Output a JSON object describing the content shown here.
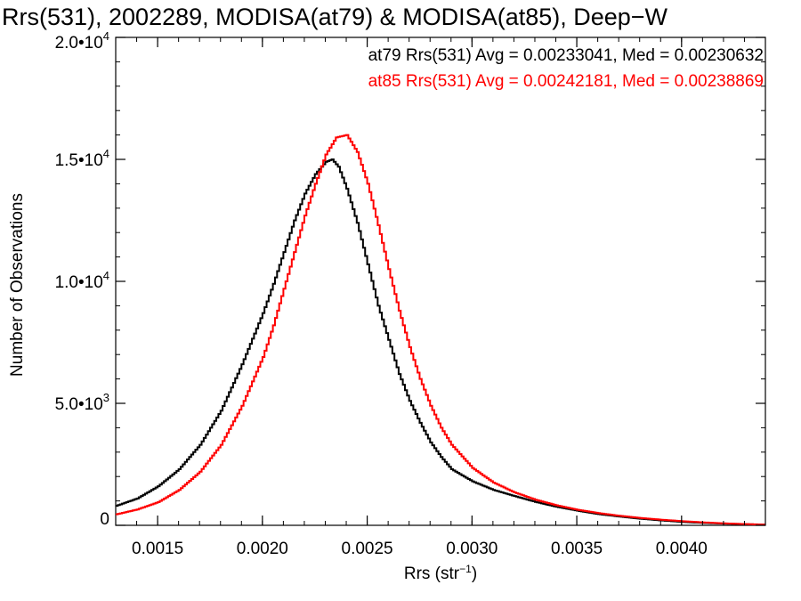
{
  "chart_data": {
    "type": "line",
    "title": "Rrs(531), 2002289, MODISA(at79) & MODISA(at85), Deep−W",
    "xlabel": "Rrs (str",
    "xlabel_sup": "−1",
    "xlabel_close": ")",
    "ylabel": "Number of Observations",
    "xlim": [
      0.0013,
      0.0044
    ],
    "ylim": [
      0,
      20000
    ],
    "xticks": [
      {
        "value": 0.0015,
        "label": "0.0015"
      },
      {
        "value": 0.002,
        "label": "0.0020"
      },
      {
        "value": 0.0025,
        "label": "0.0025"
      },
      {
        "value": 0.003,
        "label": "0.0030"
      },
      {
        "value": 0.0035,
        "label": "0.0035"
      },
      {
        "value": 0.004,
        "label": "0.0040"
      }
    ],
    "yticks": [
      {
        "value": 0,
        "label": "0",
        "exp": ""
      },
      {
        "value": 5000,
        "label": "5.0•10",
        "exp": "3"
      },
      {
        "value": 10000,
        "label": "1.0•10",
        "exp": "4"
      },
      {
        "value": 15000,
        "label": "1.5•10",
        "exp": "4"
      },
      {
        "value": 20000,
        "label": "2.0•10",
        "exp": "4"
      }
    ],
    "x_minor_step": 0.0001,
    "y_minor_step": 1000,
    "grid": false,
    "annotations": [
      "at79 Rrs(531) Avg = 0.00233041, Med = 0.00230632",
      "at85 Rrs(531) Avg = 0.00242181, Med = 0.00238869"
    ],
    "series": [
      {
        "name": "at79",
        "color": "#000000",
        "x": [
          0.0013,
          0.0014,
          0.0015,
          0.0016,
          0.0017,
          0.0018,
          0.0019,
          0.002,
          0.00205,
          0.0021,
          0.00215,
          0.0022,
          0.00225,
          0.0023,
          0.00233,
          0.00236,
          0.0024,
          0.00245,
          0.0025,
          0.00255,
          0.0026,
          0.00265,
          0.0027,
          0.00275,
          0.0028,
          0.00285,
          0.0029,
          0.003,
          0.0031,
          0.0032,
          0.0033,
          0.0034,
          0.0035,
          0.0036,
          0.0037,
          0.0038,
          0.0039,
          0.004,
          0.0041,
          0.0042,
          0.0043,
          0.0044
        ],
        "y": [
          800,
          1100,
          1600,
          2300,
          3300,
          4700,
          6600,
          8700,
          9900,
          11200,
          12500,
          13600,
          14400,
          14900,
          15000,
          14700,
          13800,
          12400,
          10700,
          9000,
          7600,
          6200,
          5100,
          4200,
          3400,
          2800,
          2300,
          1800,
          1450,
          1200,
          960,
          760,
          600,
          460,
          360,
          270,
          200,
          140,
          100,
          70,
          45,
          25
        ]
      },
      {
        "name": "at85",
        "color": "#ff0000",
        "x": [
          0.0013,
          0.0014,
          0.0015,
          0.0016,
          0.0017,
          0.0018,
          0.0019,
          0.002,
          0.00205,
          0.0021,
          0.00215,
          0.0022,
          0.00225,
          0.0023,
          0.00235,
          0.0024,
          0.00245,
          0.0025,
          0.00255,
          0.0026,
          0.00265,
          0.0027,
          0.00275,
          0.0028,
          0.00285,
          0.0029,
          0.003,
          0.0031,
          0.0032,
          0.0033,
          0.0034,
          0.0035,
          0.0036,
          0.0037,
          0.0038,
          0.0039,
          0.004,
          0.0041,
          0.0042,
          0.0043,
          0.0044
        ],
        "y": [
          450,
          650,
          950,
          1450,
          2200,
          3300,
          4900,
          6900,
          8200,
          9700,
          11200,
          12700,
          14000,
          15200,
          15900,
          16000,
          15300,
          14000,
          12300,
          10500,
          8800,
          7300,
          6000,
          4900,
          4000,
          3300,
          2350,
          1750,
          1350,
          1050,
          820,
          640,
          500,
          390,
          300,
          230,
          170,
          120,
          80,
          50,
          30
        ]
      }
    ]
  }
}
